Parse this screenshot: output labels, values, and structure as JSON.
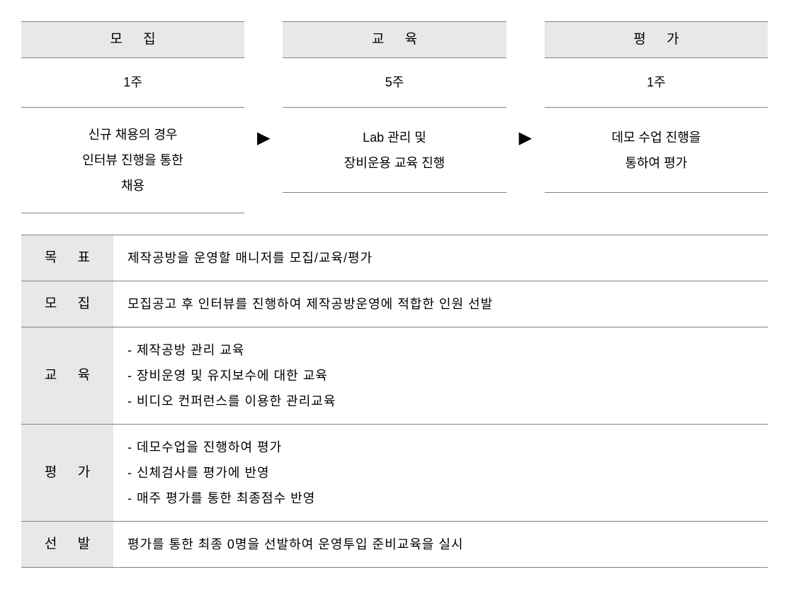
{
  "flow": {
    "columns": [
      {
        "header": "모 집",
        "duration": "1주",
        "desc": "신규 채용의 경우\n인터뷰 진행을 통한\n채용"
      },
      {
        "header": "교 육",
        "duration": "5주",
        "desc": "Lab 관리 및\n장비운용 교육 진행"
      },
      {
        "header": "평 가",
        "duration": "1주",
        "desc": "데모 수업 진행을\n통하여 평가"
      }
    ],
    "arrow": "▶"
  },
  "details": {
    "rows": [
      {
        "label": "목 표",
        "content": "제작공방을 운영할 매니저를 모집/교육/평가"
      },
      {
        "label": "모 집",
        "content": "모집공고 후 인터뷰를 진행하여 제작공방운영에 적합한 인원 선발"
      },
      {
        "label": "교 육",
        "content": "- 제작공방 관리 교육\n- 장비운영 및 유지보수에 대한 교육\n- 비디오 컨퍼런스를 이용한 관리교육"
      },
      {
        "label": "평 가",
        "content": "- 데모수업을 진행하여 평가\n- 신체검사를 평가에 반영\n- 매주 평가를 통한 최종점수 반영"
      },
      {
        "label": "선 발",
        "content": "평가를 통한 최종 0명을 선발하여 운영투입 준비교육을 실시"
      }
    ]
  },
  "colors": {
    "header_bg": "#e8e8e8",
    "border": "#808080",
    "background": "#ffffff",
    "text": "#000000"
  },
  "typography": {
    "base_fontsize": 18,
    "header_fontsize": 19
  }
}
